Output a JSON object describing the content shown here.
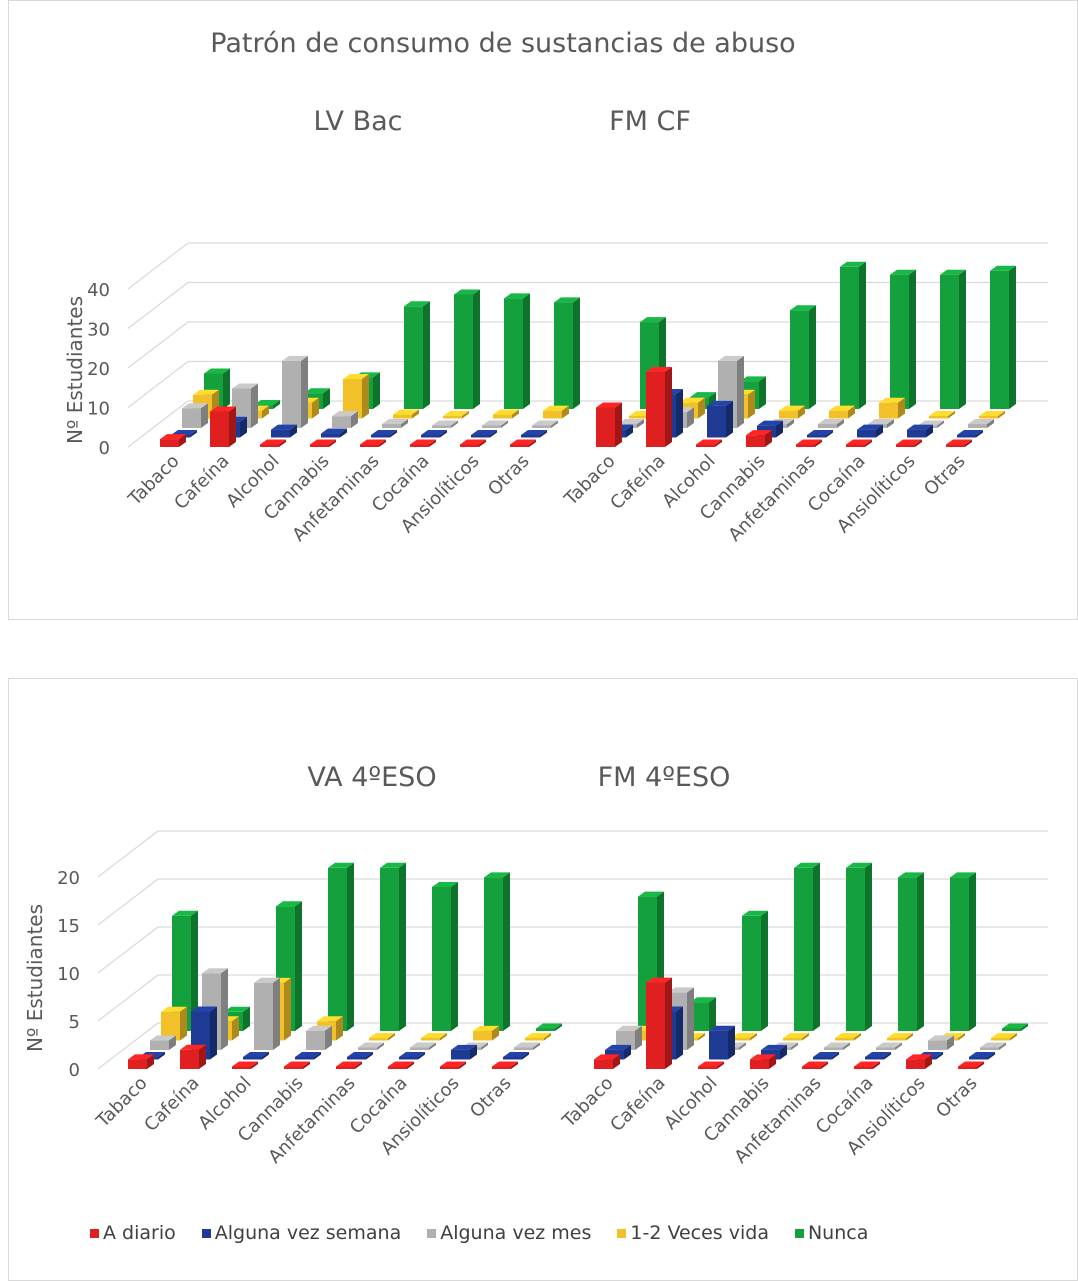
{
  "title": "Patrón de consumo de sustancias de abuso",
  "y_axis_label": "Nº Estudiantes",
  "colors": {
    "A diario": "#e02020",
    "Alguna vez semana": "#1f3a93",
    "Alguna vez mes": "#b0b0b0",
    "1-2 Veces vida": "#f2c028",
    "Nunca": "#14a03c"
  },
  "legend": [
    "A diario",
    "Alguna vez semana",
    "Alguna vez mes",
    "1-2 Veces vida",
    "Nunca"
  ],
  "chart_data": [
    {
      "type": "bar",
      "subtitle": "LV Bac",
      "categories": [
        "Tabaco",
        "Cafeína",
        "Alcohol",
        "Cannabis",
        "Anfetaminas",
        "Cocaína",
        "Ansiolíticos",
        "Otras"
      ],
      "ylim": [
        0,
        40
      ],
      "yticks": [
        0,
        10,
        20,
        30,
        40
      ],
      "series": [
        {
          "name": "A diario",
          "values": [
            2,
            9,
            0,
            0,
            0,
            0,
            0,
            0
          ]
        },
        {
          "name": "Alguna vez semana",
          "values": [
            0,
            4,
            2,
            1,
            0,
            0,
            0,
            0
          ]
        },
        {
          "name": "Alguna vez mes",
          "values": [
            5,
            10,
            17,
            3,
            1,
            0,
            0,
            0
          ]
        },
        {
          "name": "1-2 Veces vida",
          "values": [
            6,
            2,
            4,
            10,
            1,
            0,
            1,
            2
          ]
        },
        {
          "name": "Nunca",
          "values": [
            9,
            1,
            4,
            8,
            26,
            29,
            28,
            27
          ]
        }
      ]
    },
    {
      "type": "bar",
      "subtitle": "FM CF",
      "categories": [
        "Tabaco",
        "Cafeína",
        "Alcohol",
        "Cannabis",
        "Anfetaminas",
        "Cocaína",
        "Ansiolíticos",
        "Otras"
      ],
      "ylim": [
        0,
        40
      ],
      "yticks": [
        0,
        10,
        20,
        30,
        40
      ],
      "series": [
        {
          "name": "A diario",
          "values": [
            10,
            19,
            0,
            3,
            0,
            0,
            0,
            0
          ]
        },
        {
          "name": "Alguna vez semana",
          "values": [
            2,
            11,
            8,
            3,
            0,
            2,
            2,
            0
          ]
        },
        {
          "name": "Alguna vez mes",
          "values": [
            1,
            4,
            17,
            1,
            1,
            1,
            0,
            1
          ]
        },
        {
          "name": "1-2 Veces vida",
          "values": [
            0,
            4,
            6,
            2,
            2,
            4,
            0,
            0
          ]
        },
        {
          "name": "Nunca",
          "values": [
            22,
            3,
            7,
            25,
            36,
            34,
            34,
            35
          ]
        }
      ]
    },
    {
      "type": "bar",
      "subtitle": "VA 4ºESO",
      "categories": [
        "Tabaco",
        "Cafeína",
        "Alcohol",
        "Cannabis",
        "Anfetaminas",
        "Cocaína",
        "Ansiolíticos",
        "Otras"
      ],
      "ylim": [
        0,
        20
      ],
      "yticks": [
        0,
        5,
        10,
        15,
        20
      ],
      "series": [
        {
          "name": "A diario",
          "values": [
            1,
            2,
            0,
            0,
            0,
            0,
            0,
            0
          ]
        },
        {
          "name": "Alguna vez semana",
          "values": [
            0,
            5,
            0,
            0,
            0,
            0,
            1,
            0
          ]
        },
        {
          "name": "Alguna vez mes",
          "values": [
            1,
            8,
            7,
            2,
            0,
            0,
            0,
            0
          ]
        },
        {
          "name": "1-2 Veces vida",
          "values": [
            3,
            2,
            6,
            2,
            0,
            0,
            1,
            0
          ]
        },
        {
          "name": "Nunca",
          "values": [
            12,
            2,
            13,
            17,
            17,
            15,
            16,
            0
          ]
        }
      ]
    },
    {
      "type": "bar",
      "subtitle": "FM 4ºESO",
      "categories": [
        "Tabaco",
        "Cafeína",
        "Alcohol",
        "Cannabis",
        "Anfetaminas",
        "Cocaína",
        "Ansiolíticos",
        "Otras"
      ],
      "ylim": [
        0,
        20
      ],
      "yticks": [
        0,
        5,
        10,
        15,
        20
      ],
      "series": [
        {
          "name": "A diario",
          "values": [
            1,
            9,
            0,
            1,
            0,
            0,
            1,
            0
          ]
        },
        {
          "name": "Alguna vez semana",
          "values": [
            1,
            5,
            3,
            1,
            0,
            0,
            0,
            0
          ]
        },
        {
          "name": "Alguna vez mes",
          "values": [
            2,
            6,
            0,
            0,
            0,
            0,
            1,
            0
          ]
        },
        {
          "name": "1-2 Veces vida",
          "values": [
            1,
            0,
            0,
            0,
            0,
            0,
            0,
            0
          ]
        },
        {
          "name": "Nunca",
          "values": [
            14,
            3,
            12,
            17,
            17,
            16,
            16,
            0
          ]
        }
      ]
    }
  ]
}
